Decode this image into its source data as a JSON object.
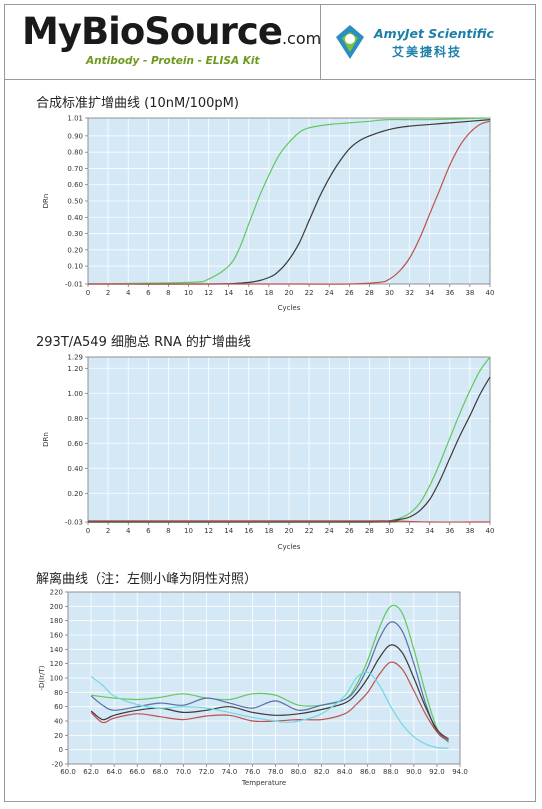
{
  "header": {
    "brand_left": {
      "text_main": "MyBioSource",
      "text_suffix": ".com",
      "tagline": "Antibody - Protein - ELISA Kit"
    },
    "brand_right": {
      "name": "AmyJet Scientific",
      "name_cn": "艾美捷科技"
    }
  },
  "colors": {
    "bg": "#d4e8f5",
    "grid": "#ffffff",
    "green": "#5ec95e",
    "black": "#3a3a3a",
    "red": "#c0504d",
    "blue": "#5a6ea8",
    "cyan": "#6fd8e2"
  },
  "sections": [
    {
      "title": "合成标准扩增曲线 (10nM/100pM)"
    },
    {
      "title": "293T/A549 细胞总 RNA 的扩增曲线"
    },
    {
      "title": "解离曲线（注：左侧小峰为阴性对照）"
    }
  ],
  "chart_data": [
    {
      "type": "line",
      "xlabel": "Cycles",
      "ylabel": "DRn",
      "xlim": [
        0,
        40
      ],
      "ylim": [
        -0.01,
        1.01
      ],
      "x_ticks": [
        0,
        2,
        4,
        6,
        8,
        10,
        12,
        14,
        16,
        18,
        20,
        22,
        24,
        26,
        28,
        30,
        32,
        34,
        36,
        38,
        40
      ],
      "y_ticks": [
        -0.01,
        0.1,
        0.2,
        0.3,
        0.4,
        0.5,
        0.6,
        0.7,
        0.8,
        0.9,
        1.01
      ],
      "y_tick_labels": [
        "-0.01",
        "0.10",
        "0.20",
        "0.30",
        "0.40",
        "0.50",
        "0.60",
        "0.70",
        "0.80",
        "0.90",
        "1.01"
      ],
      "grid": true,
      "series": [
        {
          "color": "#5ec95e",
          "x": [
            0,
            10,
            12,
            14,
            15,
            16,
            17,
            18,
            19,
            20,
            21,
            22,
            24,
            26,
            28,
            30,
            34,
            40
          ],
          "y": [
            -0.01,
            0.0,
            0.02,
            0.1,
            0.2,
            0.36,
            0.52,
            0.66,
            0.78,
            0.86,
            0.92,
            0.95,
            0.97,
            0.98,
            0.99,
            1.0,
            1.0,
            1.01
          ]
        },
        {
          "color": "#3a3a3a",
          "x": [
            0,
            12,
            16,
            18,
            19,
            20,
            21,
            22,
            23,
            24,
            25,
            26,
            27,
            28,
            30,
            32,
            36,
            40
          ],
          "y": [
            -0.01,
            -0.01,
            0.0,
            0.03,
            0.07,
            0.14,
            0.24,
            0.38,
            0.52,
            0.64,
            0.74,
            0.82,
            0.87,
            0.9,
            0.94,
            0.96,
            0.98,
            1.0
          ]
        },
        {
          "color": "#c0504d",
          "x": [
            0,
            20,
            26,
            29,
            30,
            31,
            32,
            33,
            34,
            35,
            36,
            37,
            38,
            39,
            40
          ],
          "y": [
            -0.01,
            -0.01,
            -0.01,
            0.0,
            0.02,
            0.07,
            0.15,
            0.27,
            0.42,
            0.57,
            0.72,
            0.84,
            0.92,
            0.97,
            0.99
          ]
        }
      ]
    },
    {
      "type": "line",
      "xlabel": "Cycles",
      "ylabel": "DRn",
      "xlim": [
        0,
        40
      ],
      "ylim": [
        -0.03,
        1.29
      ],
      "x_ticks": [
        0,
        2,
        4,
        6,
        8,
        10,
        12,
        14,
        16,
        18,
        20,
        22,
        24,
        26,
        28,
        30,
        32,
        34,
        36,
        38,
        40
      ],
      "y_ticks": [
        -0.03,
        0.2,
        0.4,
        0.6,
        0.8,
        1.0,
        1.2,
        1.29
      ],
      "y_tick_labels": [
        "-0.03",
        "0.20",
        "0.40",
        "0.60",
        "0.80",
        "1.00",
        "1.20",
        "1.29"
      ],
      "grid": true,
      "series": [
        {
          "color": "#5ec95e",
          "x": [
            0,
            28,
            30,
            31,
            32,
            33,
            34,
            35,
            36,
            37,
            38,
            39,
            40
          ],
          "y": [
            -0.03,
            -0.03,
            -0.02,
            0.0,
            0.04,
            0.12,
            0.26,
            0.44,
            0.64,
            0.84,
            1.02,
            1.18,
            1.29
          ]
        },
        {
          "color": "#3a3a3a",
          "x": [
            0,
            28,
            30,
            31,
            32,
            33,
            34,
            35,
            36,
            37,
            38,
            39,
            40
          ],
          "y": [
            -0.03,
            -0.03,
            -0.02,
            -0.01,
            0.01,
            0.06,
            0.15,
            0.3,
            0.48,
            0.66,
            0.82,
            0.99,
            1.13
          ]
        },
        {
          "color": "#c0504d",
          "x": [
            0,
            10,
            20,
            28,
            30,
            34,
            38,
            40
          ],
          "y": [
            -0.02,
            -0.02,
            -0.02,
            -0.02,
            -0.02,
            -0.03,
            -0.03,
            -0.03
          ]
        }
      ]
    },
    {
      "type": "line",
      "xlabel": "Temperature",
      "ylabel": "-D(Ir/T)",
      "xlim": [
        60,
        94
      ],
      "ylim": [
        -20,
        220
      ],
      "x_ticks": [
        60,
        62,
        64,
        66,
        68,
        70,
        72,
        74,
        76,
        78,
        80,
        82,
        84,
        86,
        88,
        90,
        92,
        94
      ],
      "x_tick_labels": [
        "60.0",
        "62.0",
        "64.0",
        "66.0",
        "68.0",
        "70.0",
        "72.0",
        "74.0",
        "76.0",
        "78.0",
        "80.0",
        "82.0",
        "84.0",
        "86.0",
        "88.0",
        "90.0",
        "92.0",
        "94.0"
      ],
      "y_ticks": [
        -20,
        0,
        20,
        40,
        60,
        80,
        100,
        120,
        140,
        160,
        180,
        200,
        220
      ],
      "y_tick_labels": [
        "-20",
        "0",
        "20",
        "40",
        "60",
        "80",
        "100",
        "120",
        "140",
        "160",
        "180",
        "200",
        "220"
      ],
      "grid": true,
      "series": [
        {
          "color": "#5ec95e",
          "x": [
            62,
            64,
            66,
            68,
            70,
            72,
            74,
            76,
            78,
            80,
            82,
            84,
            85,
            86,
            87,
            88,
            89,
            90,
            91,
            92,
            93
          ],
          "y": [
            76,
            72,
            70,
            73,
            78,
            72,
            70,
            78,
            76,
            62,
            62,
            70,
            90,
            125,
            170,
            200,
            190,
            140,
            80,
            30,
            10
          ]
        },
        {
          "color": "#5a6ea8",
          "x": [
            62,
            63,
            64,
            66,
            68,
            70,
            72,
            74,
            76,
            78,
            80,
            82,
            84,
            85,
            86,
            87,
            88,
            89,
            90,
            91,
            92,
            93
          ],
          "y": [
            75,
            62,
            55,
            60,
            65,
            62,
            72,
            65,
            58,
            68,
            55,
            62,
            70,
            85,
            115,
            155,
            178,
            165,
            120,
            65,
            25,
            12
          ]
        },
        {
          "color": "#3a3a3a",
          "x": [
            62,
            63,
            64,
            66,
            68,
            70,
            72,
            74,
            76,
            78,
            80,
            82,
            84,
            85,
            86,
            87,
            88,
            89,
            90,
            91,
            92,
            93
          ],
          "y": [
            54,
            42,
            48,
            55,
            58,
            52,
            55,
            60,
            52,
            48,
            50,
            56,
            65,
            78,
            100,
            128,
            146,
            135,
            100,
            60,
            28,
            15
          ]
        },
        {
          "color": "#c0504d",
          "x": [
            62,
            63,
            64,
            66,
            68,
            70,
            72,
            74,
            76,
            78,
            80,
            82,
            84,
            85,
            86,
            87,
            88,
            89,
            90,
            91,
            92,
            93
          ],
          "y": [
            52,
            38,
            44,
            50,
            46,
            42,
            47,
            48,
            40,
            40,
            42,
            42,
            50,
            63,
            80,
            105,
            122,
            112,
            82,
            50,
            25,
            14
          ]
        },
        {
          "color": "#6fd8e2",
          "x": [
            62,
            63,
            64,
            66,
            68,
            70,
            72,
            74,
            76,
            78,
            79,
            80,
            82,
            84,
            85,
            86,
            87,
            88,
            89,
            90,
            91,
            92,
            93
          ],
          "y": [
            102,
            90,
            75,
            63,
            58,
            60,
            58,
            52,
            45,
            40,
            38,
            40,
            50,
            75,
            100,
            108,
            90,
            60,
            35,
            18,
            8,
            3,
            2
          ]
        }
      ]
    }
  ]
}
